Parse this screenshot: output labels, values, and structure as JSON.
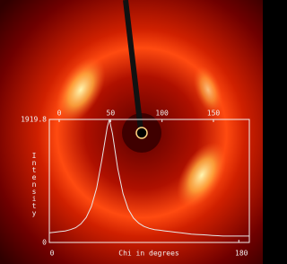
{
  "chart_data": {
    "type": "line",
    "x_label": "Chi in degrees",
    "y_label": "Intensity",
    "x": [
      0,
      5,
      10,
      15,
      20,
      25,
      30,
      35,
      40,
      45,
      50,
      55,
      57,
      60,
      65,
      70,
      75,
      80,
      85,
      90,
      95,
      100,
      105,
      110,
      115,
      120,
      125,
      130,
      135,
      140,
      145,
      150,
      155,
      160,
      165,
      170,
      175,
      180,
      185,
      190
    ],
    "series": [
      {
        "color": "#e8e8e8",
        "values": [
          150,
          160,
          170,
          180,
          200,
          230,
          290,
          390,
          560,
          850,
          1300,
          1800,
          1919.8,
          1700,
          1150,
          760,
          520,
          380,
          300,
          250,
          220,
          200,
          190,
          180,
          170,
          160,
          150,
          140,
          130,
          125,
          120,
          115,
          110,
          105,
          100,
          100,
          100,
          100,
          100,
          100
        ]
      }
    ],
    "xlim": [
      0,
      190
    ],
    "xticks": [
      0,
      180
    ],
    "x2lim": [
      -9.6,
      184.9
    ],
    "x2ticks": [
      0,
      50,
      100,
      150
    ],
    "ylim": [
      0,
      1919.8
    ],
    "yticks": [
      0,
      1919.8
    ]
  }
}
